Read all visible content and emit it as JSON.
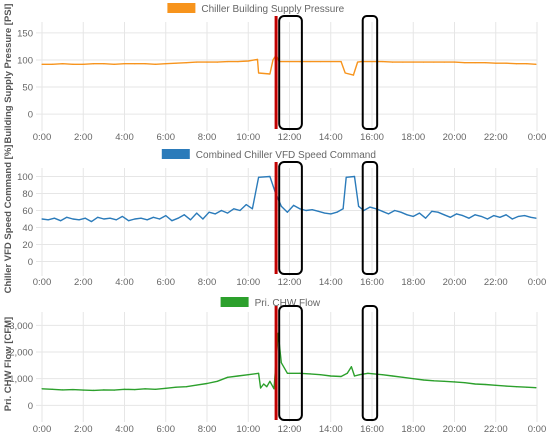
{
  "chart_data": [
    {
      "type": "line",
      "legend": "Chiller Building Supply Pressure",
      "ylabel": "Building Supply Pressure [PSI]",
      "xlabel": "",
      "ylim": [
        -20,
        170
      ],
      "yticks": [
        "0",
        "50",
        "100",
        "150"
      ],
      "ytick_values": [
        0,
        50,
        100,
        150
      ],
      "xlim": [
        0,
        24
      ],
      "xticks": [
        "0:00",
        "2:00",
        "4:00",
        "6:00",
        "8:00",
        "10:00",
        "12:00",
        "14:00",
        "16:00",
        "18:00",
        "20:00",
        "22:00",
        "0:00"
      ],
      "color": "#f7941d",
      "x": [
        0,
        0.5,
        1,
        1.5,
        2,
        2.5,
        3,
        3.5,
        4,
        4.5,
        5,
        5.5,
        6,
        6.5,
        7,
        7.5,
        8,
        8.5,
        9,
        9.5,
        10,
        10.45,
        10.5,
        11.05,
        11.2,
        11.35,
        11.5,
        12,
        12.5,
        13,
        13.5,
        14,
        14.5,
        14.7,
        15.1,
        15.3,
        15.5,
        16,
        16.5,
        17,
        17.5,
        18,
        18.5,
        19,
        19.5,
        20,
        20.5,
        21,
        21.5,
        22,
        22.5,
        23,
        23.5,
        23.95
      ],
      "y": [
        92,
        92,
        93,
        92,
        92,
        93,
        93,
        92,
        93,
        93,
        93,
        92,
        93,
        94,
        95,
        96,
        96,
        96,
        97,
        97,
        98,
        101,
        76,
        74,
        100,
        109,
        97,
        97,
        97,
        97,
        97,
        97,
        97,
        76,
        72,
        96,
        97,
        97,
        97,
        96,
        96,
        96,
        96,
        96,
        96,
        96,
        95,
        95,
        95,
        94,
        94,
        93,
        93,
        92
      ]
    },
    {
      "type": "line",
      "legend": "Combined Chiller VFD Speed Command",
      "ylabel": "Chiller VFD Speed Command [%]",
      "xlabel": "",
      "ylim": [
        -10,
        110
      ],
      "yticks": [
        "0",
        "20",
        "40",
        "60",
        "80",
        "100"
      ],
      "ytick_values": [
        0,
        20,
        40,
        60,
        80,
        100
      ],
      "xlim": [
        0,
        24
      ],
      "xticks": [
        "0:00",
        "2:00",
        "4:00",
        "6:00",
        "8:00",
        "10:00",
        "12:00",
        "14:00",
        "16:00",
        "18:00",
        "20:00",
        "22:00",
        "0:00"
      ],
      "color": "#2b7bba",
      "x": [
        0,
        0.3,
        0.6,
        0.9,
        1.2,
        1.5,
        1.8,
        2.1,
        2.4,
        2.7,
        3,
        3.3,
        3.6,
        3.9,
        4.2,
        4.5,
        4.8,
        5.1,
        5.4,
        5.7,
        6,
        6.3,
        6.6,
        6.9,
        7.2,
        7.5,
        7.8,
        8.1,
        8.4,
        8.7,
        9,
        9.3,
        9.6,
        9.9,
        10.2,
        10.5,
        11.05,
        11.3,
        11.6,
        11.9,
        12.2,
        12.5,
        12.8,
        13.1,
        13.4,
        13.7,
        14,
        14.3,
        14.6,
        14.75,
        15.15,
        15.35,
        15.6,
        15.9,
        16.2,
        16.5,
        16.8,
        17.1,
        17.4,
        17.7,
        18,
        18.3,
        18.6,
        18.9,
        19.2,
        19.5,
        19.8,
        20.1,
        20.4,
        20.7,
        21,
        21.3,
        21.6,
        21.9,
        22.2,
        22.5,
        22.8,
        23.1,
        23.4,
        23.7,
        23.95
      ],
      "y": [
        50,
        49,
        51,
        48,
        52,
        50,
        49,
        51,
        47,
        52,
        50,
        51,
        49,
        53,
        48,
        50,
        51,
        49,
        52,
        50,
        54,
        48,
        51,
        55,
        49,
        57,
        50,
        58,
        56,
        60,
        57,
        62,
        60,
        67,
        62,
        99,
        100,
        82,
        65,
        58,
        66,
        62,
        60,
        61,
        59,
        57,
        56,
        58,
        62,
        99,
        100,
        65,
        60,
        64,
        62,
        59,
        56,
        60,
        58,
        55,
        53,
        57,
        51,
        59,
        58,
        55,
        52,
        56,
        54,
        51,
        55,
        53,
        50,
        54,
        52,
        55,
        50,
        53,
        54,
        52,
        51
      ]
    },
    {
      "type": "line",
      "legend": "Pri. CHW Flow",
      "ylabel": "Pri. CHW Flow [CFM]",
      "xlabel": "",
      "ylim": [
        -400,
        3500
      ],
      "yticks": [
        "0",
        "1,000",
        "2,000",
        "3,000"
      ],
      "ytick_values": [
        0,
        1000,
        2000,
        3000
      ],
      "xlim": [
        0,
        24
      ],
      "xticks": [
        "0:00",
        "2:00",
        "4:00",
        "6:00",
        "8:00",
        "10:00",
        "12:00",
        "14:00",
        "16:00",
        "18:00",
        "20:00",
        "22:00",
        "0:00"
      ],
      "color": "#2ca02c",
      "x": [
        0,
        0.5,
        1,
        1.5,
        2,
        2.5,
        3,
        3.5,
        4,
        4.5,
        5,
        5.5,
        6,
        6.5,
        7,
        7.5,
        8,
        8.5,
        9,
        9.5,
        10,
        10.5,
        10.6,
        10.75,
        10.9,
        11.05,
        11.25,
        11.45,
        11.6,
        11.9,
        12.5,
        13,
        13.5,
        14,
        14.5,
        14.8,
        15,
        15.15,
        15.4,
        15.8,
        16.5,
        17,
        17.5,
        18,
        18.5,
        19,
        19.5,
        20,
        20.5,
        21,
        21.5,
        22,
        22.5,
        23,
        23.5,
        23.95
      ],
      "y": [
        620,
        600,
        580,
        590,
        570,
        560,
        580,
        570,
        600,
        590,
        620,
        600,
        640,
        680,
        700,
        760,
        820,
        900,
        1050,
        1100,
        1150,
        1200,
        650,
        800,
        700,
        900,
        620,
        2700,
        1600,
        1200,
        1200,
        1180,
        1150,
        1100,
        1080,
        1200,
        1450,
        1100,
        1150,
        1200,
        1150,
        1100,
        1050,
        1000,
        950,
        920,
        900,
        880,
        850,
        800,
        780,
        750,
        720,
        700,
        680,
        660
      ]
    }
  ],
  "annotations": {
    "red_line_time": 11.35,
    "box_1_time_range": [
      11.5,
      12.6
    ],
    "box_2_time_range": [
      15.55,
      16.25
    ]
  }
}
